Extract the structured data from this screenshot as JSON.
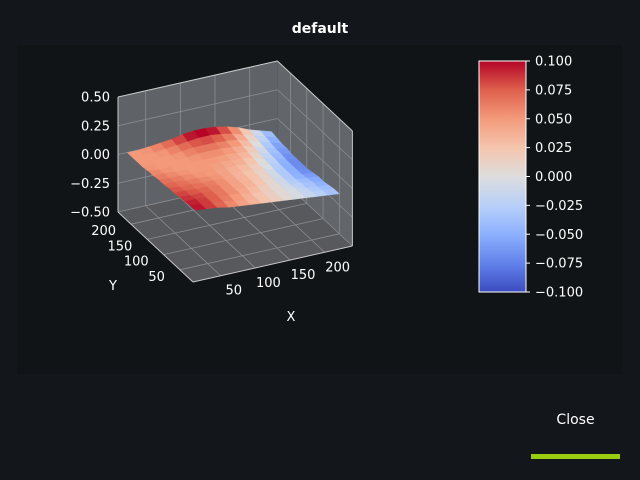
{
  "window": {
    "title": "default",
    "close_label": "Close",
    "accent_color": "#9acd12"
  },
  "chart_data": {
    "type": "surface3d",
    "title": "default",
    "xlabel": "X",
    "ylabel": "Y",
    "zlabel": "",
    "xticks": [
      "50",
      "100",
      "150",
      "200"
    ],
    "yticks": [
      "50",
      "100",
      "150",
      "200"
    ],
    "zticks": [
      "0.50",
      "0.25",
      "0.00",
      "−0.25",
      "−0.50"
    ],
    "xlim": [
      10,
      240
    ],
    "ylim": [
      10,
      240
    ],
    "zlim": [
      -0.5,
      0.5
    ],
    "colormap": "coolwarm",
    "clim": [
      -0.1,
      0.1
    ],
    "colorbar_ticks": [
      "0.100",
      "0.075",
      "0.050",
      "0.025",
      "0.000",
      "−0.025",
      "−0.050",
      "−0.075",
      "−0.100"
    ],
    "surface": {
      "x": [
        16,
        32,
        48,
        64,
        80,
        96,
        112,
        128,
        144,
        160,
        176,
        192,
        208,
        224
      ],
      "y": [
        16,
        32,
        48,
        64,
        80,
        96,
        112,
        128,
        144,
        160,
        176,
        192,
        208,
        224
      ],
      "description": "smooth surface values between about -0.10 and 0.12",
      "z_grid": [
        [
          0.1,
          0.09,
          0.08,
          0.06,
          0.05,
          0.04,
          0.03,
          0.02,
          0.01,
          0.0,
          -0.01,
          -0.02,
          -0.03,
          -0.04
        ],
        [
          0.1,
          0.09,
          0.08,
          0.07,
          0.05,
          0.04,
          0.03,
          0.02,
          0.01,
          0.0,
          -0.01,
          -0.02,
          -0.03,
          -0.04
        ],
        [
          0.09,
          0.09,
          0.08,
          0.07,
          0.06,
          0.05,
          0.03,
          0.02,
          0.01,
          0.0,
          -0.01,
          -0.03,
          -0.04,
          -0.05
        ],
        [
          0.09,
          0.08,
          0.08,
          0.07,
          0.06,
          0.05,
          0.04,
          0.03,
          0.01,
          0.0,
          -0.02,
          -0.03,
          -0.04,
          -0.06
        ],
        [
          0.08,
          0.08,
          0.07,
          0.07,
          0.06,
          0.05,
          0.04,
          0.03,
          0.02,
          0.0,
          -0.02,
          -0.04,
          -0.05,
          -0.06
        ],
        [
          0.08,
          0.07,
          0.07,
          0.06,
          0.06,
          0.05,
          0.04,
          0.03,
          0.02,
          0.0,
          -0.02,
          -0.04,
          -0.06,
          -0.07
        ],
        [
          0.07,
          0.07,
          0.06,
          0.06,
          0.05,
          0.05,
          0.04,
          0.03,
          0.02,
          0.01,
          -0.02,
          -0.04,
          -0.06,
          -0.08
        ],
        [
          0.07,
          0.06,
          0.06,
          0.05,
          0.05,
          0.05,
          0.04,
          0.04,
          0.03,
          0.01,
          -0.01,
          -0.04,
          -0.06,
          -0.08
        ],
        [
          0.06,
          0.06,
          0.05,
          0.05,
          0.05,
          0.05,
          0.05,
          0.04,
          0.04,
          0.02,
          -0.01,
          -0.03,
          -0.06,
          -0.08
        ],
        [
          0.06,
          0.05,
          0.05,
          0.05,
          0.05,
          0.05,
          0.05,
          0.05,
          0.04,
          0.03,
          0.0,
          -0.03,
          -0.05,
          -0.08
        ],
        [
          0.05,
          0.05,
          0.05,
          0.05,
          0.05,
          0.06,
          0.06,
          0.06,
          0.05,
          0.04,
          0.01,
          -0.02,
          -0.05,
          -0.07
        ],
        [
          0.05,
          0.05,
          0.05,
          0.05,
          0.06,
          0.07,
          0.07,
          0.07,
          0.06,
          0.05,
          0.02,
          -0.01,
          -0.04,
          -0.07
        ],
        [
          0.05,
          0.05,
          0.05,
          0.06,
          0.07,
          0.08,
          0.09,
          0.09,
          0.08,
          0.06,
          0.03,
          0.0,
          -0.03,
          -0.06
        ],
        [
          0.05,
          0.05,
          0.06,
          0.07,
          0.08,
          0.1,
          0.11,
          0.11,
          0.1,
          0.08,
          0.05,
          0.01,
          -0.02,
          -0.05
        ]
      ]
    }
  }
}
